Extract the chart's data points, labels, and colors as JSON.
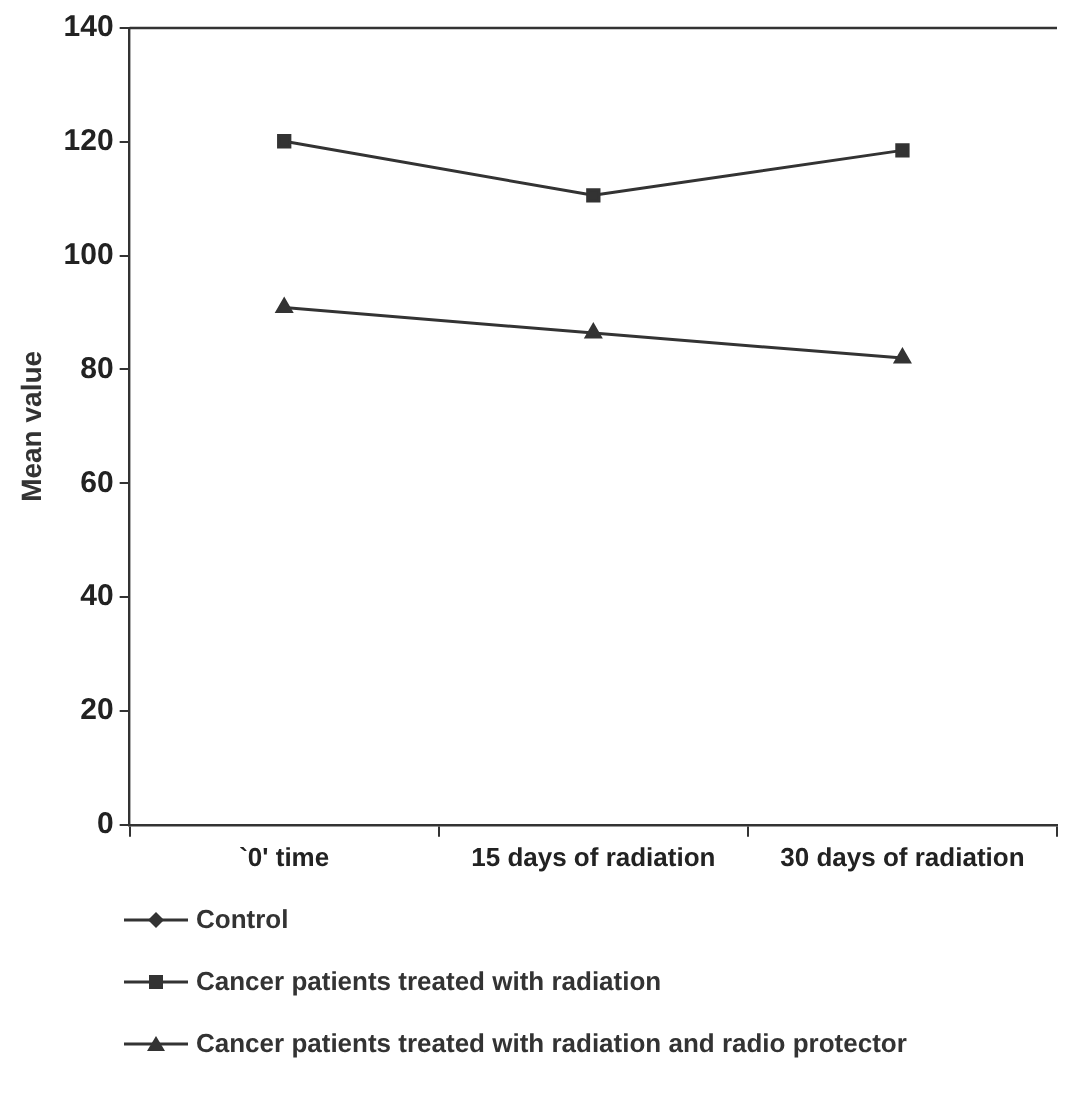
{
  "chart_data": {
    "type": "line",
    "ylabel": "Mean value",
    "categories": [
      "`0' time",
      "15 days of radiation",
      "30 days of radiation"
    ],
    "series": [
      {
        "name": "Control",
        "color": "#333333",
        "marker": "diamond",
        "values": [
          null,
          null,
          null
        ]
      },
      {
        "name": "Cancer patients treated with radiation",
        "color": "#333333",
        "marker": "square",
        "values": [
          120.1,
          110.6,
          118.5
        ]
      },
      {
        "name": "Cancer patients treated with radiation and radio protector",
        "color": "#333333",
        "marker": "triangle",
        "values": [
          90.9,
          86.4,
          82.0
        ]
      }
    ],
    "ylim": [
      0,
      140
    ],
    "yticks": [
      0,
      20,
      40,
      60,
      80,
      100,
      120,
      140
    ],
    "grid": false,
    "legend": "bottom"
  }
}
